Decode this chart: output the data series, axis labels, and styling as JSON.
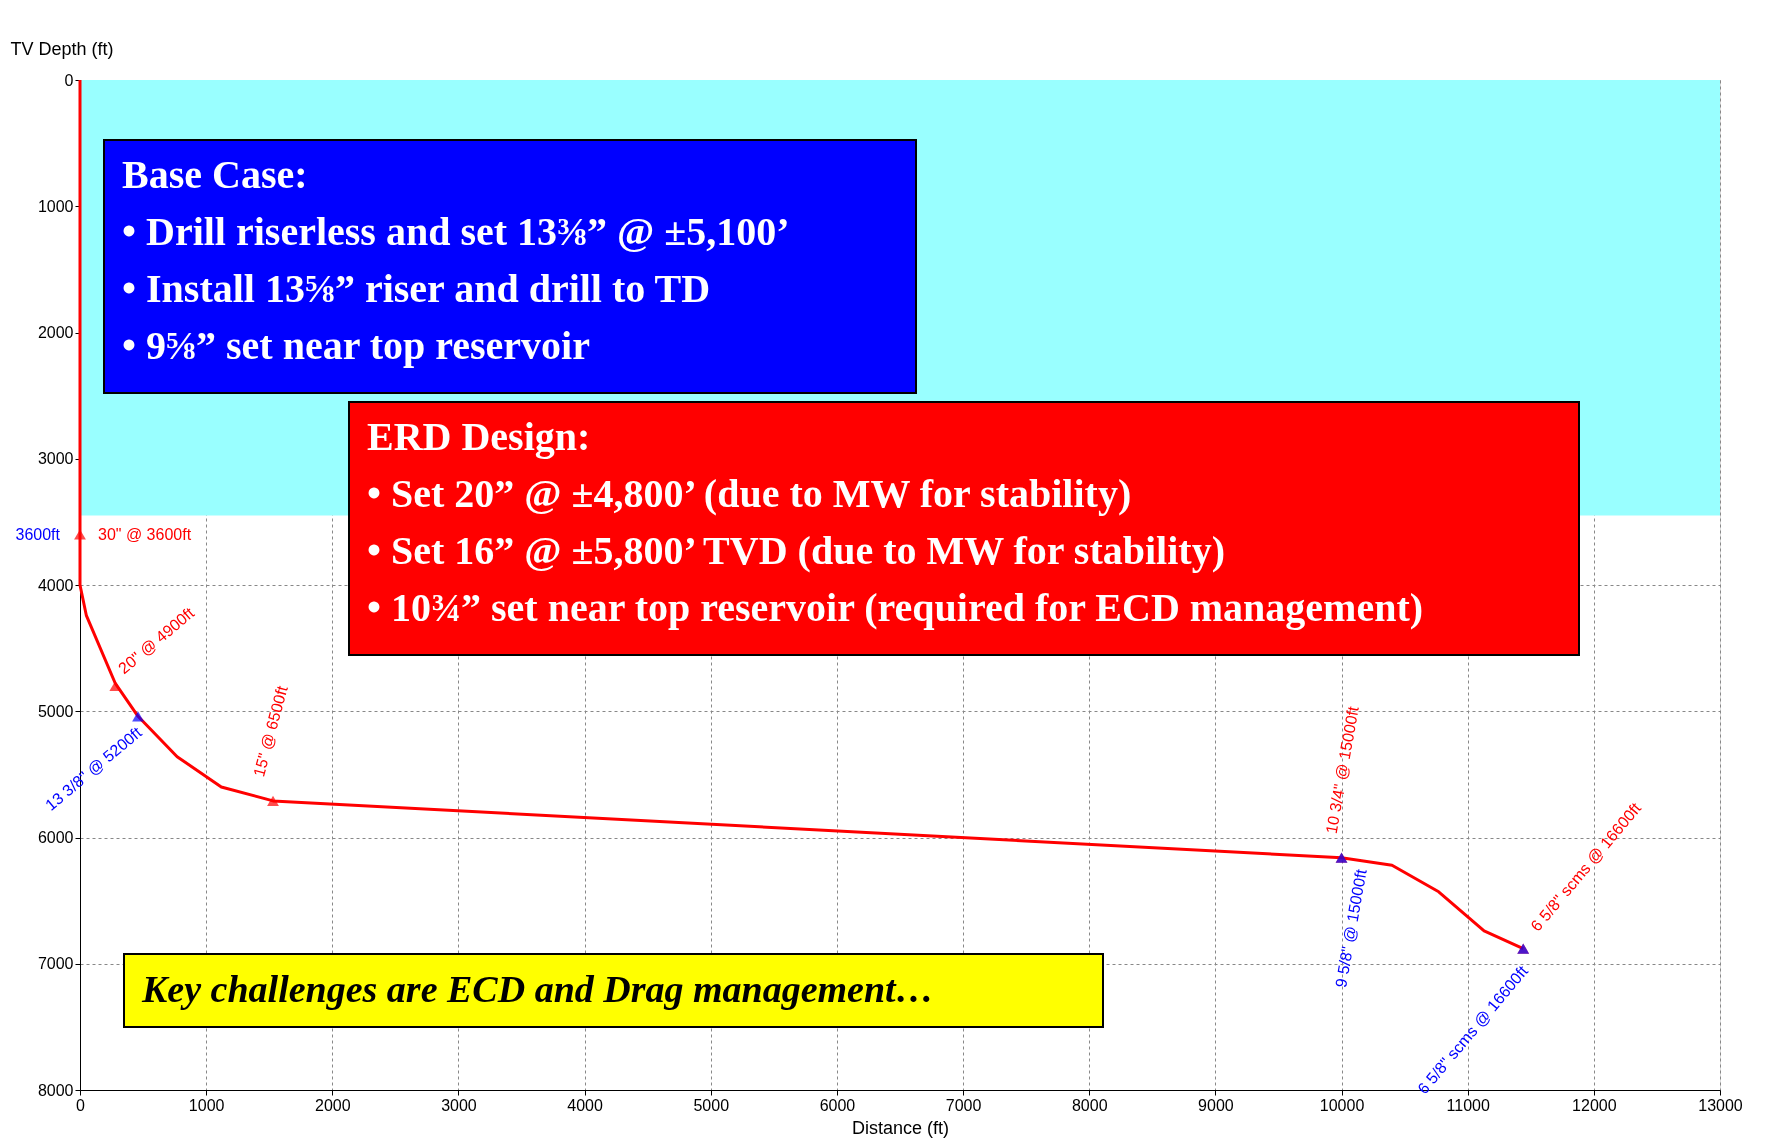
{
  "chart_data": {
    "type": "line",
    "xlabel": "Distance (ft)",
    "ylabel": "TV Depth (ft)",
    "xlim": [
      0,
      13000
    ],
    "xticks": [
      0,
      1000,
      2000,
      3000,
      4000,
      5000,
      6000,
      7000,
      8000,
      9000,
      10000,
      11000,
      12000,
      13000
    ],
    "ylim": [
      8000,
      0
    ],
    "yticks": [
      0,
      1000,
      2000,
      3000,
      4000,
      5000,
      6000,
      7000,
      8000
    ],
    "grid": true,
    "bands": [
      {
        "axis": "y",
        "from": 0,
        "to": 3450,
        "color": "#99ffff"
      }
    ],
    "series": [
      {
        "type": "line",
        "color": "#ff0000",
        "marker": "none",
        "x": [
          0,
          0,
          0,
          50,
          280,
          460,
          770,
          1120,
          1530,
          10000,
          10400,
          10770,
          11130,
          11440
        ],
        "values": [
          0,
          3600,
          4000,
          4240,
          4780,
          5040,
          5360,
          5600,
          5710,
          6160,
          6220,
          6430,
          6740,
          6880
        ]
      },
      {
        "type": "scatter",
        "color": "#ff0000",
        "marker": "triangle",
        "x": [
          0,
          280,
          1530,
          10000,
          11440
        ],
        "values": [
          3600,
          4800,
          5710,
          6160,
          6880
        ],
        "value_labels": [
          "30\" @ 3600ft",
          "20\" @ 4900ft",
          "15\" @ 6500ft",
          "10 3/4\" @ 15000ft",
          "6 5/8\" scms @ 16600ft"
        ]
      },
      {
        "type": "scatter",
        "color": "#0000ff",
        "marker": "triangle",
        "x": [
          460,
          10000,
          11440
        ],
        "values": [
          5040,
          6160,
          6880
        ],
        "value_labels": [
          "13 3/8\" @ 5200ft",
          "9 5/8\" @ 15000ft",
          "6 5/8\" scms @ 16600ft"
        ]
      }
    ],
    "annotations": [
      "Base Case:\n• Drill riserless and set 13⅜” @ ±5,100’\n• Install 13⅝” riser and drill to TD\n• 9⅝” set near top reservoir",
      "ERD Design:\n• Set 20” @ ±4,800’ (due to MW for stability)\n• Set 16” @ ±5,800’ TVD (due to MW for stability)\n• 10¾” set near top reservoir (required for ECD management)",
      "Key challenges are ECD and Drag management…",
      {
        "text": "3600ft",
        "x": 0,
        "y": 3600
      }
    ]
  }
}
